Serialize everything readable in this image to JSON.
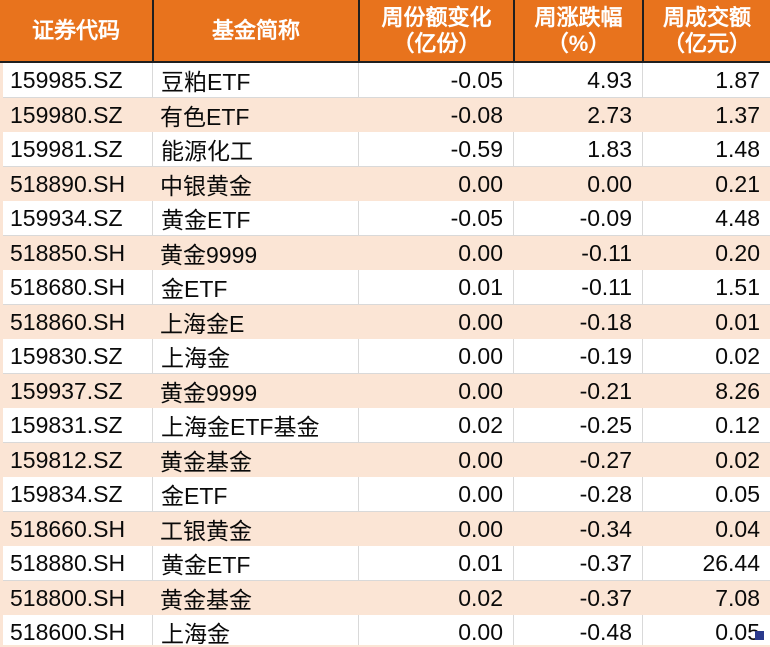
{
  "header": {
    "columns": [
      {
        "label": "证券代码",
        "sub": ""
      },
      {
        "label": "基金简称",
        "sub": ""
      },
      {
        "label": "周份额变化",
        "sub": "（亿份）"
      },
      {
        "label": "周涨跌幅",
        "sub": "（%）"
      },
      {
        "label": "周成交额",
        "sub": "（亿元）"
      }
    ]
  },
  "rows": [
    {
      "code": "159985.SZ",
      "name": "豆粕ETF",
      "share_change": "-0.05",
      "pct_change": "4.93",
      "turnover": "1.87"
    },
    {
      "code": "159980.SZ",
      "name": "有色ETF",
      "share_change": "-0.08",
      "pct_change": "2.73",
      "turnover": "1.37"
    },
    {
      "code": "159981.SZ",
      "name": "能源化工",
      "share_change": "-0.59",
      "pct_change": "1.83",
      "turnover": "1.48"
    },
    {
      "code": "518890.SH",
      "name": "中银黄金",
      "share_change": "0.00",
      "pct_change": "0.00",
      "turnover": "0.21"
    },
    {
      "code": "159934.SZ",
      "name": "黄金ETF",
      "share_change": "-0.05",
      "pct_change": "-0.09",
      "turnover": "4.48"
    },
    {
      "code": "518850.SH",
      "name": "黄金9999",
      "share_change": "0.00",
      "pct_change": "-0.11",
      "turnover": "0.20"
    },
    {
      "code": "518680.SH",
      "name": "金ETF",
      "share_change": "0.01",
      "pct_change": "-0.11",
      "turnover": "1.51"
    },
    {
      "code": "518860.SH",
      "name": "上海金E",
      "share_change": "0.00",
      "pct_change": "-0.18",
      "turnover": "0.01"
    },
    {
      "code": "159830.SZ",
      "name": "上海金",
      "share_change": "0.00",
      "pct_change": "-0.19",
      "turnover": "0.02"
    },
    {
      "code": "159937.SZ",
      "name": "黄金9999",
      "share_change": "0.00",
      "pct_change": "-0.21",
      "turnover": "8.26"
    },
    {
      "code": "159831.SZ",
      "name": "上海金ETF基金",
      "share_change": "0.02",
      "pct_change": "-0.25",
      "turnover": "0.12"
    },
    {
      "code": "159812.SZ",
      "name": "黄金基金",
      "share_change": "0.00",
      "pct_change": "-0.27",
      "turnover": "0.02"
    },
    {
      "code": "159834.SZ",
      "name": "金ETF",
      "share_change": "0.00",
      "pct_change": "-0.28",
      "turnover": "0.05"
    },
    {
      "code": "518660.SH",
      "name": "工银黄金",
      "share_change": "0.00",
      "pct_change": "-0.34",
      "turnover": "0.04"
    },
    {
      "code": "518880.SH",
      "name": "黄金ETF",
      "share_change": "0.01",
      "pct_change": "-0.37",
      "turnover": "26.44"
    },
    {
      "code": "518800.SH",
      "name": "黄金基金",
      "share_change": "0.02",
      "pct_change": "-0.37",
      "turnover": "7.08"
    },
    {
      "code": "518600.SH",
      "name": "上海金",
      "share_change": "0.00",
      "pct_change": "-0.48",
      "turnover": "0.05"
    }
  ],
  "colors": {
    "header_bg": "#E8731D",
    "header_text": "#FFFFFF",
    "header_divider": "#1F1F1F",
    "row_bg": "#FFFFFF",
    "row_alt_bg": "#FBE5D5",
    "grid_line": "#D9D9D9",
    "text": "#0A0A0A",
    "corner_square": "#2B3A8C"
  }
}
